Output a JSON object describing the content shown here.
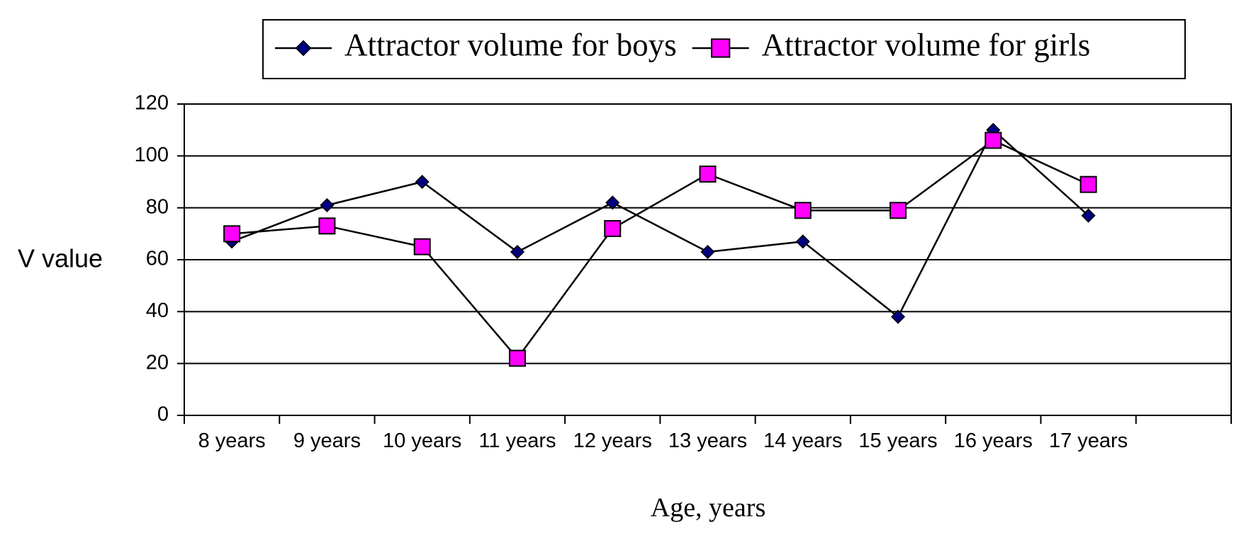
{
  "chart_data": {
    "type": "line",
    "categories": [
      "8 years",
      "9 years",
      "10 years",
      "11 years",
      "12 years",
      "13 years",
      "14 years",
      "15 years",
      "16 years",
      "17 years",
      null
    ],
    "series": [
      {
        "name": "Attractor volume for boys",
        "color": "#000080",
        "marker": "diamond",
        "values": [
          67,
          81,
          90,
          63,
          82,
          63,
          67,
          38,
          110,
          77,
          null
        ]
      },
      {
        "name": "Attractor volume for girls",
        "color": "#ff00ff",
        "marker": "square",
        "values": [
          70,
          73,
          65,
          22,
          72,
          93,
          79,
          79,
          106,
          89,
          null
        ]
      }
    ],
    "y_label": "V value",
    "x_label": "Age, years",
    "ylim": [
      0,
      120
    ],
    "yticks": [
      0,
      20,
      40,
      60,
      80,
      100,
      120
    ],
    "grid": true,
    "legend": "top"
  }
}
